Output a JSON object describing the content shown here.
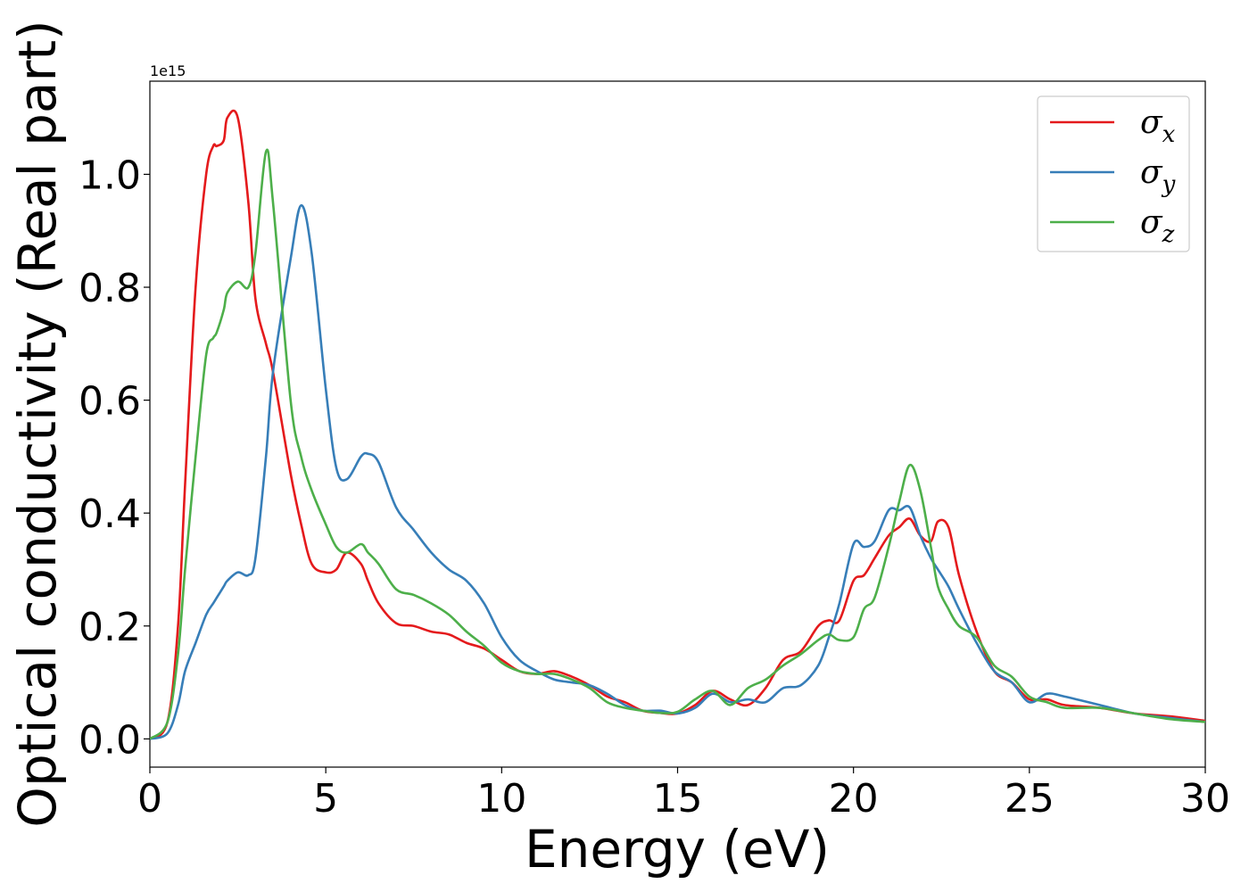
{
  "chart_data": {
    "type": "line",
    "title": "",
    "xlabel": "Energy (eV)",
    "ylabel": "Optical conductivity (Real part)",
    "offset_text": "1e15",
    "xlim": [
      0,
      30
    ],
    "ylim": [
      -0.05,
      1.165
    ],
    "xticks": [
      0,
      5,
      10,
      15,
      20,
      25,
      30
    ],
    "xtick_labels": [
      "0",
      "5",
      "10",
      "15",
      "20",
      "25",
      "30"
    ],
    "yticks": [
      0.0,
      0.2,
      0.4,
      0.6,
      0.8,
      1.0
    ],
    "ytick_labels": [
      "0.0",
      "0.2",
      "0.4",
      "0.6",
      "0.8",
      "1.0"
    ],
    "grid": false,
    "legend_position": "top-right",
    "x": [
      0,
      0.5,
      0.8,
      1.0,
      1.3,
      1.6,
      1.8,
      1.9,
      2.1,
      2.2,
      2.5,
      2.8,
      3.0,
      3.3,
      3.5,
      4.0,
      4.3,
      4.6,
      5.0,
      5.3,
      5.6,
      6.0,
      6.2,
      6.5,
      7.0,
      7.5,
      8.0,
      8.5,
      9.0,
      9.5,
      10.0,
      10.5,
      11.0,
      11.5,
      12.0,
      12.5,
      13.0,
      13.5,
      14.0,
      14.5,
      15.0,
      15.5,
      16.0,
      16.5,
      17.0,
      17.5,
      18.0,
      18.5,
      19.0,
      19.3,
      19.6,
      20.0,
      20.3,
      20.6,
      21.0,
      21.3,
      21.6,
      21.9,
      22.2,
      22.4,
      22.7,
      23.0,
      23.5,
      24.0,
      24.5,
      25.0,
      25.5,
      26.0,
      27.0,
      28.0,
      29.0,
      30.0
    ],
    "series": [
      {
        "name": "σx",
        "legend_label": "σ",
        "legend_subscript": "x",
        "color": "#e41a1c",
        "values": [
          0.0,
          0.03,
          0.2,
          0.45,
          0.8,
          1.0,
          1.05,
          1.05,
          1.06,
          1.1,
          1.1,
          0.95,
          0.78,
          0.7,
          0.65,
          0.47,
          0.38,
          0.31,
          0.295,
          0.3,
          0.33,
          0.31,
          0.28,
          0.24,
          0.205,
          0.2,
          0.19,
          0.185,
          0.17,
          0.16,
          0.14,
          0.12,
          0.115,
          0.12,
          0.11,
          0.095,
          0.075,
          0.065,
          0.05,
          0.046,
          0.045,
          0.06,
          0.085,
          0.07,
          0.06,
          0.09,
          0.14,
          0.155,
          0.2,
          0.21,
          0.21,
          0.28,
          0.29,
          0.32,
          0.36,
          0.375,
          0.39,
          0.36,
          0.35,
          0.385,
          0.375,
          0.29,
          0.19,
          0.12,
          0.1,
          0.07,
          0.07,
          0.06,
          0.055,
          0.045,
          0.04,
          0.032
        ]
      },
      {
        "name": "σy",
        "legend_label": "σ",
        "legend_subscript": "y",
        "color": "#377eb8",
        "values": [
          0.0,
          0.01,
          0.06,
          0.12,
          0.17,
          0.22,
          0.24,
          0.25,
          0.27,
          0.28,
          0.295,
          0.29,
          0.32,
          0.5,
          0.65,
          0.85,
          0.945,
          0.86,
          0.62,
          0.48,
          0.46,
          0.5,
          0.505,
          0.49,
          0.41,
          0.37,
          0.33,
          0.3,
          0.28,
          0.24,
          0.18,
          0.14,
          0.12,
          0.105,
          0.1,
          0.095,
          0.08,
          0.06,
          0.05,
          0.05,
          0.045,
          0.055,
          0.08,
          0.065,
          0.07,
          0.065,
          0.09,
          0.095,
          0.13,
          0.18,
          0.24,
          0.345,
          0.34,
          0.35,
          0.405,
          0.405,
          0.41,
          0.36,
          0.32,
          0.3,
          0.27,
          0.23,
          0.17,
          0.12,
          0.1,
          0.065,
          0.08,
          0.075,
          0.06,
          0.045,
          0.037,
          0.03
        ]
      },
      {
        "name": "σz",
        "legend_label": "σ",
        "legend_subscript": "z",
        "color": "#4daf4a",
        "values": [
          0.0,
          0.03,
          0.15,
          0.3,
          0.5,
          0.68,
          0.71,
          0.72,
          0.76,
          0.79,
          0.81,
          0.8,
          0.86,
          1.04,
          0.95,
          0.6,
          0.5,
          0.44,
          0.38,
          0.34,
          0.33,
          0.345,
          0.33,
          0.31,
          0.265,
          0.255,
          0.24,
          0.22,
          0.19,
          0.165,
          0.135,
          0.12,
          0.115,
          0.115,
          0.105,
          0.09,
          0.065,
          0.055,
          0.05,
          0.046,
          0.048,
          0.07,
          0.085,
          0.06,
          0.09,
          0.105,
          0.13,
          0.15,
          0.175,
          0.185,
          0.175,
          0.18,
          0.23,
          0.25,
          0.34,
          0.42,
          0.485,
          0.44,
          0.34,
          0.27,
          0.23,
          0.2,
          0.18,
          0.13,
          0.11,
          0.075,
          0.065,
          0.055,
          0.055,
          0.045,
          0.035,
          0.03
        ]
      }
    ]
  }
}
